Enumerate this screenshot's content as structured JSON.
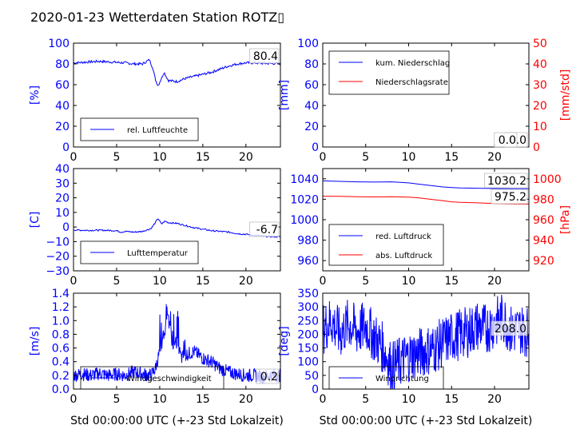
{
  "title": "2020-01-23 Wetterdaten Station ROTZ▯",
  "colors": {
    "primary": "#0000ff",
    "secondary": "#ff0000",
    "light": "#7a7aff",
    "axis": "#000000"
  },
  "chart_data": [
    {
      "id": "humidity",
      "type": "line",
      "ylabel": "[%]",
      "ylim": [
        0,
        100
      ],
      "yticks": [
        "0",
        "20",
        "40",
        "60",
        "80",
        "100"
      ],
      "xlim": [
        0,
        24
      ],
      "xticks": [
        "0",
        "5",
        "10",
        "15",
        "20"
      ],
      "xlabel": "",
      "annotations": [
        "80.4"
      ],
      "legend": {
        "position": "lower-left",
        "entries": [
          "rel. Luftfeuchte"
        ]
      },
      "series": [
        {
          "name": "rel. Luftfeuchte",
          "color": "#0000ff",
          "x": [
            0,
            1,
            2,
            3,
            4,
            5,
            6,
            7,
            8,
            8.8,
            9.2,
            9.5,
            9.8,
            10.2,
            10.5,
            11,
            12,
            13,
            14,
            15,
            16,
            17,
            18,
            19,
            20,
            21,
            22,
            23,
            24
          ],
          "y": [
            81,
            81.5,
            82,
            82.5,
            82,
            81.5,
            81,
            80,
            80,
            84,
            76,
            65,
            59,
            66,
            72,
            64,
            63,
            66,
            68,
            70,
            72,
            75,
            78,
            80,
            81,
            81,
            80.5,
            80.4,
            80.4
          ]
        }
      ]
    },
    {
      "id": "precip",
      "type": "line",
      "ylabel": "[mm]",
      "ylabel_right": "[mm/std]",
      "ylim": [
        0,
        100
      ],
      "yticks": [
        "0",
        "20",
        "40",
        "60",
        "80",
        "100"
      ],
      "ylim_right": [
        0,
        50
      ],
      "yticks_right": [
        "0",
        "10",
        "20",
        "30",
        "40",
        "50"
      ],
      "xlim": [
        0,
        24
      ],
      "xticks": [
        "0",
        "5",
        "10",
        "15",
        "20"
      ],
      "xlabel": "",
      "annotations": [
        "0.0",
        "0.0"
      ],
      "legend": {
        "position": "top-left",
        "entries": [
          "kum. Niederschlag",
          "Niederschlagsrate"
        ]
      },
      "series": [
        {
          "name": "kum. Niederschlag",
          "color": "#0000ff",
          "axis": "left",
          "x": [
            0,
            24
          ],
          "y": [
            0,
            0
          ]
        },
        {
          "name": "Niederschlagsrate",
          "color": "#ff0000",
          "axis": "right",
          "x": [
            0,
            24
          ],
          "y": [
            0,
            0
          ]
        }
      ]
    },
    {
      "id": "temperature",
      "type": "line",
      "ylabel": "[C]",
      "ylim": [
        -30,
        40
      ],
      "yticks": [
        "−30",
        "−20",
        "−10",
        "0",
        "10",
        "20",
        "30",
        "40"
      ],
      "xlim": [
        0,
        24
      ],
      "xticks": [
        "0",
        "5",
        "10",
        "15",
        "20"
      ],
      "xlabel": "",
      "annotations": [
        "-6.7"
      ],
      "legend": {
        "position": "lower-left",
        "entries": [
          "Lufttemperatur"
        ]
      },
      "series": [
        {
          "name": "Lufttemperatur",
          "color": "#0000ff",
          "x": [
            0,
            1,
            2,
            3,
            4,
            5,
            5.5,
            6,
            7,
            8,
            9,
            9.5,
            9.8,
            10.2,
            10.6,
            11,
            12,
            13,
            14,
            15,
            16,
            17,
            18,
            19,
            20,
            21,
            22,
            23,
            24
          ],
          "y": [
            -2,
            -2.2,
            -2.3,
            -2.2,
            -2.3,
            -2.5,
            -3.5,
            -3,
            -3.5,
            -3,
            -1,
            3,
            6,
            2,
            4,
            3,
            2.5,
            1,
            -0.5,
            -1.5,
            -2.5,
            -3,
            -3.5,
            -4.5,
            -5,
            -5.8,
            -6.3,
            -6.6,
            -6.7
          ]
        }
      ]
    },
    {
      "id": "pressure",
      "type": "line",
      "ylabel": "",
      "ylabel_right": "[hPa]",
      "ylim": [
        950,
        1050
      ],
      "yticks": [
        "960",
        "980",
        "1000",
        "1020",
        "1040"
      ],
      "ylim_right": [
        910,
        1010
      ],
      "yticks_right": [
        "920",
        "940",
        "960",
        "980",
        "1000"
      ],
      "xlim": [
        0,
        24
      ],
      "xticks": [
        "0",
        "5",
        "10",
        "15",
        "20"
      ],
      "xlabel": "",
      "annotations": [
        "1030.2",
        "975.2"
      ],
      "legend": {
        "position": "lower-left",
        "entries": [
          "red. Luftdruck",
          "abs. Luftdruck"
        ]
      },
      "series": [
        {
          "name": "red. Luftdruck",
          "color": "#0000ff",
          "axis": "left",
          "x": [
            0,
            2,
            4,
            6,
            8,
            9,
            10,
            11,
            12,
            13,
            14,
            15,
            16,
            18,
            20,
            22,
            24
          ],
          "y": [
            1038,
            1037.5,
            1037,
            1036.8,
            1037,
            1036.5,
            1036,
            1035,
            1034,
            1033,
            1032,
            1031.5,
            1031,
            1030.8,
            1030.5,
            1030.3,
            1030.2
          ]
        },
        {
          "name": "abs. Luftdruck",
          "color": "#ff0000",
          "axis": "right",
          "x": [
            0,
            2,
            4,
            6,
            8,
            9,
            10,
            11,
            12,
            13,
            14,
            15,
            16,
            18,
            20,
            22,
            24
          ],
          "y": [
            983,
            982.8,
            982.5,
            982.3,
            982.5,
            982.3,
            982,
            981.5,
            980.5,
            979.5,
            978.5,
            977.5,
            977,
            976.5,
            975.8,
            975.4,
            975.2
          ]
        }
      ]
    },
    {
      "id": "windspeed",
      "type": "line",
      "ylabel": "[m/s]",
      "ylim": [
        0,
        1.4
      ],
      "yticks": [
        "0.0",
        "0.2",
        "0.4",
        "0.6",
        "0.8",
        "1.0",
        "1.2",
        "1.4"
      ],
      "xlim": [
        0,
        24
      ],
      "xticks": [
        "0",
        "5",
        "10",
        "15",
        "20"
      ],
      "xlabel": "Std 00:00:00 UTC (+-23 Std Lokalzeit)",
      "annotations": [
        "0.2"
      ],
      "legend": {
        "position": "lower-left",
        "entries": [
          "Windgeschwindigkeit"
        ]
      },
      "series": [
        {
          "name": "Windgeschwindigkeit",
          "color": "#0000ff",
          "x": [
            0,
            1,
            2,
            3,
            4,
            5,
            6,
            7,
            8,
            9,
            9.5,
            10,
            10.5,
            11,
            11.5,
            12,
            12.5,
            13,
            14,
            15,
            16,
            17,
            18,
            19,
            20,
            21,
            22,
            23,
            24
          ],
          "y": [
            0.2,
            0.22,
            0.2,
            0.23,
            0.2,
            0.22,
            0.2,
            0.25,
            0.22,
            0.2,
            0.3,
            0.55,
            0.8,
            1.05,
            0.6,
            0.7,
            0.45,
            0.5,
            0.55,
            0.45,
            0.4,
            0.3,
            0.25,
            0.22,
            0.2,
            0.2,
            0.18,
            0.2,
            0.2
          ]
        }
      ]
    },
    {
      "id": "winddir",
      "type": "line",
      "ylabel": "[deg]",
      "ylim": [
        0,
        350
      ],
      "yticks": [
        "0",
        "50",
        "100",
        "150",
        "200",
        "250",
        "300",
        "350"
      ],
      "xlim": [
        0,
        24
      ],
      "xticks": [
        "0",
        "5",
        "10",
        "15",
        "20"
      ],
      "xlabel": "Std 00:00:00 UTC (+-23 Std Lokalzeit)",
      "annotations": [
        "208.0"
      ],
      "legend": {
        "position": "lower-left",
        "entries": [
          "Windrichtung"
        ]
      },
      "series": [
        {
          "name": "Windrichtung",
          "color": "#0000ff",
          "x": [
            0,
            1,
            2,
            3,
            4,
            5,
            6,
            7,
            8,
            9,
            10,
            11,
            12,
            13,
            14,
            15,
            16,
            17,
            18,
            19,
            20,
            21,
            22,
            23,
            24
          ],
          "y": [
            220,
            250,
            200,
            240,
            210,
            230,
            190,
            150,
            80,
            100,
            120,
            130,
            140,
            150,
            170,
            190,
            200,
            210,
            230,
            220,
            240,
            260,
            210,
            220,
            208
          ]
        }
      ]
    }
  ]
}
